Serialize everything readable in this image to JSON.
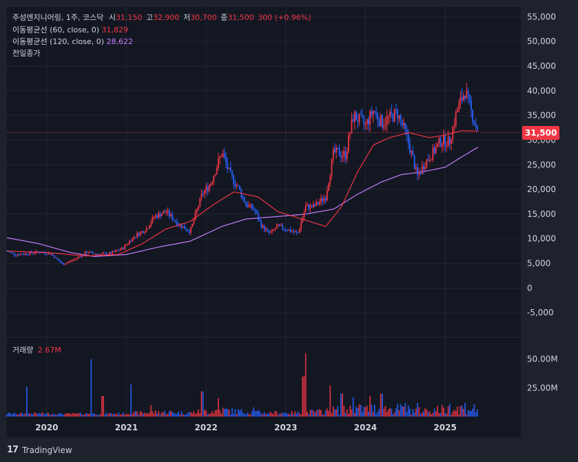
{
  "legend": {
    "title": "주성엔지니어링, 1주, 코스닥",
    "open_label": "시",
    "open": "31,150",
    "high_label": "고",
    "high": "32,900",
    "low_label": "저",
    "low": "30,700",
    "close_label": "종",
    "close": "31,500",
    "change": "300 (+0.96%)",
    "ma60_label": "이동평균선 (60, close, 0)",
    "ma60": "31,829",
    "ma120_label": "이동평균선 (120, close, 0)",
    "ma120": "28,622",
    "prev_close_label": "전일종가"
  },
  "volume_legend": {
    "label": "거래량",
    "value": "2.67M"
  },
  "last_price_badge": "31,500",
  "brand": "TradingView",
  "colors": {
    "background": "#1e222d",
    "up": "#f23645",
    "down": "#2962ff",
    "ma60": "#f23645",
    "ma120": "#c77dff"
  },
  "chart_data": {
    "type": "candlestick",
    "price_axis": {
      "ticks": [
        55000,
        50000,
        45000,
        40000,
        35000,
        30000,
        25000,
        20000,
        15000,
        10000,
        5000,
        0,
        -5000
      ],
      "tick_labels": [
        "55,000",
        "50,000",
        "45,000",
        "40,000",
        "35,000",
        "30,000",
        "25,000",
        "20,000",
        "15,000",
        "10,000",
        "5,000",
        "0",
        "-5,000"
      ],
      "range": [
        -10000,
        57000
      ]
    },
    "volume_axis": {
      "ticks": [
        50000000,
        25000000
      ],
      "tick_labels": [
        "50.00M",
        "25.00M"
      ],
      "range": [
        0,
        60000000
      ]
    },
    "time_axis": {
      "labels": [
        "2020",
        "2021",
        "2022",
        "2023",
        "2024",
        "2025"
      ],
      "start": 2019.5,
      "end": 2025.95
    },
    "last_close": 31500,
    "price_anchors": [
      [
        2019.5,
        7500
      ],
      [
        2019.6,
        6800
      ],
      [
        2019.75,
        7000
      ],
      [
        2019.9,
        7300
      ],
      [
        2020.05,
        7000
      ],
      [
        2020.2,
        4800
      ],
      [
        2020.35,
        5800
      ],
      [
        2020.5,
        7300
      ],
      [
        2020.65,
        6800
      ],
      [
        2020.8,
        7000
      ],
      [
        2020.95,
        8000
      ],
      [
        2021.1,
        10500
      ],
      [
        2021.25,
        12000
      ],
      [
        2021.35,
        14500
      ],
      [
        2021.5,
        15500
      ],
      [
        2021.65,
        13000
      ],
      [
        2021.8,
        11500
      ],
      [
        2021.95,
        19000
      ],
      [
        2022.05,
        21000
      ],
      [
        2022.2,
        27500
      ],
      [
        2022.3,
        23000
      ],
      [
        2022.4,
        20500
      ],
      [
        2022.5,
        17000
      ],
      [
        2022.6,
        16000
      ],
      [
        2022.7,
        12500
      ],
      [
        2022.8,
        11000
      ],
      [
        2022.9,
        12500
      ],
      [
        2023.0,
        12000
      ],
      [
        2023.15,
        11000
      ],
      [
        2023.25,
        16500
      ],
      [
        2023.35,
        16500
      ],
      [
        2023.5,
        18500
      ],
      [
        2023.6,
        27500
      ],
      [
        2023.75,
        27000
      ],
      [
        2023.85,
        35000
      ],
      [
        2024.0,
        33000
      ],
      [
        2024.1,
        36000
      ],
      [
        2024.2,
        33500
      ],
      [
        2024.3,
        34500
      ],
      [
        2024.4,
        35500
      ],
      [
        2024.5,
        31500
      ],
      [
        2024.6,
        26000
      ],
      [
        2024.65,
        22500
      ],
      [
        2024.75,
        25500
      ],
      [
        2024.85,
        27500
      ],
      [
        2024.95,
        30000
      ],
      [
        2025.05,
        29500
      ],
      [
        2025.15,
        36000
      ],
      [
        2025.25,
        40000
      ],
      [
        2025.32,
        36000
      ],
      [
        2025.42,
        31500
      ]
    ],
    "ma60_anchors": [
      [
        2019.5,
        7500
      ],
      [
        2020.0,
        7200
      ],
      [
        2020.5,
        6500
      ],
      [
        2020.9,
        6800
      ],
      [
        2021.2,
        9000
      ],
      [
        2021.5,
        12000
      ],
      [
        2021.8,
        13500
      ],
      [
        2022.1,
        17000
      ],
      [
        2022.35,
        19500
      ],
      [
        2022.65,
        18500
      ],
      [
        2022.9,
        15500
      ],
      [
        2023.2,
        14000
      ],
      [
        2023.5,
        12500
      ],
      [
        2023.7,
        16500
      ],
      [
        2023.9,
        23500
      ],
      [
        2024.1,
        29000
      ],
      [
        2024.3,
        30500
      ],
      [
        2024.55,
        31500
      ],
      [
        2024.8,
        30500
      ],
      [
        2025.0,
        31000
      ],
      [
        2025.2,
        31900
      ],
      [
        2025.42,
        31829
      ]
    ],
    "ma120_anchors": [
      [
        2019.5,
        10200
      ],
      [
        2019.9,
        9000
      ],
      [
        2020.3,
        7200
      ],
      [
        2020.6,
        6400
      ],
      [
        2021.0,
        6800
      ],
      [
        2021.4,
        8300
      ],
      [
        2021.8,
        9500
      ],
      [
        2022.2,
        12500
      ],
      [
        2022.5,
        14000
      ],
      [
        2022.9,
        14500
      ],
      [
        2023.25,
        15000
      ],
      [
        2023.6,
        16000
      ],
      [
        2023.9,
        19000
      ],
      [
        2024.2,
        21500
      ],
      [
        2024.45,
        23000
      ],
      [
        2024.7,
        23500
      ],
      [
        2025.0,
        24500
      ],
      [
        2025.2,
        26500
      ],
      [
        2025.42,
        28622
      ]
    ],
    "volume_spikes": [
      [
        2019.75,
        26000000
      ],
      [
        2020.55,
        50000000
      ],
      [
        2020.7,
        18000000
      ],
      [
        2021.05,
        28000000
      ],
      [
        2021.3,
        10000000
      ],
      [
        2021.95,
        22000000
      ],
      [
        2022.15,
        16000000
      ],
      [
        2022.6,
        8000000
      ],
      [
        2023.25,
        55000000
      ],
      [
        2023.22,
        35000000
      ],
      [
        2023.55,
        27000000
      ],
      [
        2023.7,
        20000000
      ],
      [
        2023.85,
        17000000
      ],
      [
        2024.05,
        18000000
      ],
      [
        2024.2,
        20000000
      ],
      [
        2024.5,
        12000000
      ],
      [
        2024.65,
        12000000
      ],
      [
        2025.05,
        11000000
      ],
      [
        2025.25,
        12000000
      ]
    ]
  }
}
